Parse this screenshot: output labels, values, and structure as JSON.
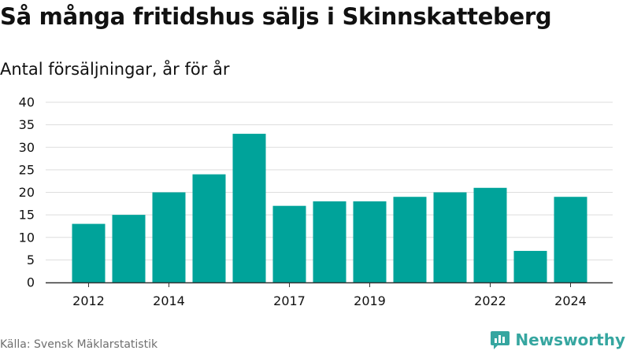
{
  "title": "Så många fritidshus säljs i Skinnskatteberg",
  "subtitle": "Antal försäljningar, år för år",
  "source": "Källa: Svensk Mäklarstatistik",
  "brand": {
    "name": "Newsworthy",
    "icon": "newsworthy-logo-icon"
  },
  "colors": {
    "bar": "#00a39a",
    "grid": "#dddddd",
    "axis": "#333333",
    "brand": "#36a6a0",
    "text": "#111111",
    "source": "#6f6f6f"
  },
  "chart_data": {
    "type": "bar",
    "categories": [
      "2012",
      "2013",
      "2014",
      "2015",
      "2016",
      "2017",
      "2018",
      "2019",
      "2020",
      "2021",
      "2022",
      "2023",
      "2024"
    ],
    "values": [
      13,
      15,
      20,
      24,
      33,
      17,
      18,
      18,
      19,
      20,
      21,
      7,
      19
    ],
    "x_tick_labels": [
      "2012",
      "2014",
      "2017",
      "2019",
      "2022",
      "2024"
    ],
    "y_ticks": [
      0,
      5,
      10,
      15,
      20,
      25,
      30,
      35,
      40
    ],
    "ylim": [
      0,
      40
    ],
    "title": "Så många fritidshus säljs i Skinnskatteberg",
    "xlabel": "",
    "ylabel": "",
    "grid": true,
    "legend": "none"
  }
}
